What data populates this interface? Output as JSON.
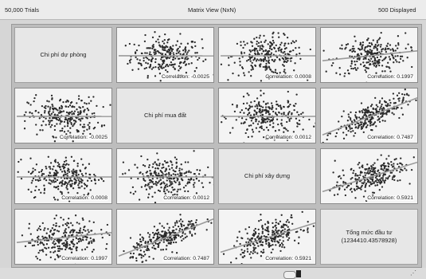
{
  "header": {
    "trials": "50,000 Trials",
    "title": "Matrix View (NxN)",
    "displayed": "500 Displayed"
  },
  "variables": [
    {
      "label": "Chi phí dự phòng"
    },
    {
      "label": "Chi phí mua đất"
    },
    {
      "label": "Chi phí xây dựng"
    },
    {
      "label": "Tổng mức đầu tư",
      "sublabel": "(1234410.43578928)"
    }
  ],
  "correlations": {
    "c01": "Correlation: -0.0025",
    "c02": "Correlation: 0.0008",
    "c03": "Correlation: 0.1997",
    "c12": "Correlation: 0.0012",
    "c13": "Correlation: 0.7487",
    "c23": "Correlation: 0.5921"
  },
  "corr_values": {
    "c01": -0.0025,
    "c02": 0.0008,
    "c03": 0.1997,
    "c12": 0.0012,
    "c13": 0.7487,
    "c23": 0.5921
  },
  "colors": {
    "point": "#2a2a2a",
    "trend": "#9a9a9a",
    "cell_bg": "#f4f4f4",
    "grid_bg": "#bdbdbd"
  },
  "icons": {
    "scroll_handle": "scroll-handle-icon",
    "resize": "resize-grip-icon"
  }
}
